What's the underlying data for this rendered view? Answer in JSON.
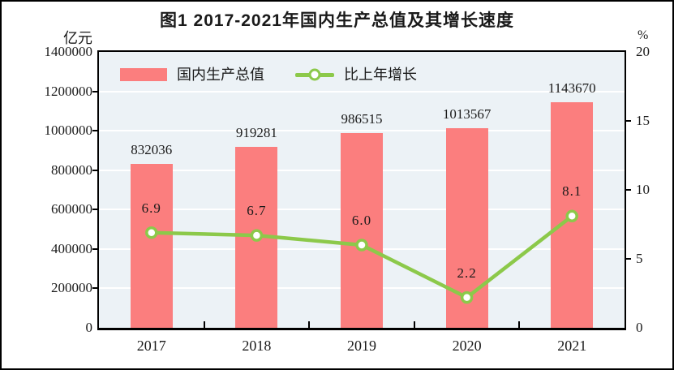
{
  "page": {
    "title": "图1  2017-2021年国内生产总值及其增长速度"
  },
  "chart_data": {
    "type": "bar",
    "subtype": "combo-bar-line-dual-axis",
    "title": "图1  2017-2021年国内生产总值及其增长速度",
    "categories": [
      "2017",
      "2018",
      "2019",
      "2020",
      "2021"
    ],
    "series": [
      {
        "name": "国内生产总值",
        "type": "bar",
        "axis": "left",
        "unit": "亿元",
        "values": [
          832036,
          919281,
          986515,
          1013567,
          1143670
        ],
        "labels": [
          "832036",
          "919281",
          "986515",
          "1013567",
          "1143670"
        ]
      },
      {
        "name": "比上年增长",
        "type": "line",
        "axis": "right",
        "unit": "%",
        "values": [
          6.9,
          6.7,
          6.0,
          2.2,
          8.1
        ],
        "labels": [
          "6.9",
          "6.7",
          "6.0",
          "2.2",
          "8.1"
        ]
      }
    ],
    "left_axis": {
      "unit": "亿元",
      "min": 0,
      "max": 1400000,
      "step": 200000,
      "tick_labels": [
        "0",
        "200000",
        "400000",
        "600000",
        "800000",
        "1000000",
        "1200000",
        "1400000"
      ]
    },
    "right_axis": {
      "unit": "%",
      "min": 0,
      "max": 20,
      "step": 5,
      "tick_labels": [
        "0",
        "5",
        "10",
        "15",
        "20"
      ]
    },
    "grid": true,
    "legend_position": "top-left-inside",
    "colors": {
      "bar": "#FB7E7E",
      "line": "#8CC94A",
      "marker_fill": "#FFFFFF",
      "plot_bg": "#ECF2F6",
      "gridline": "#FFFFFF",
      "text": "#1A1A1A",
      "border": "#000000"
    }
  }
}
